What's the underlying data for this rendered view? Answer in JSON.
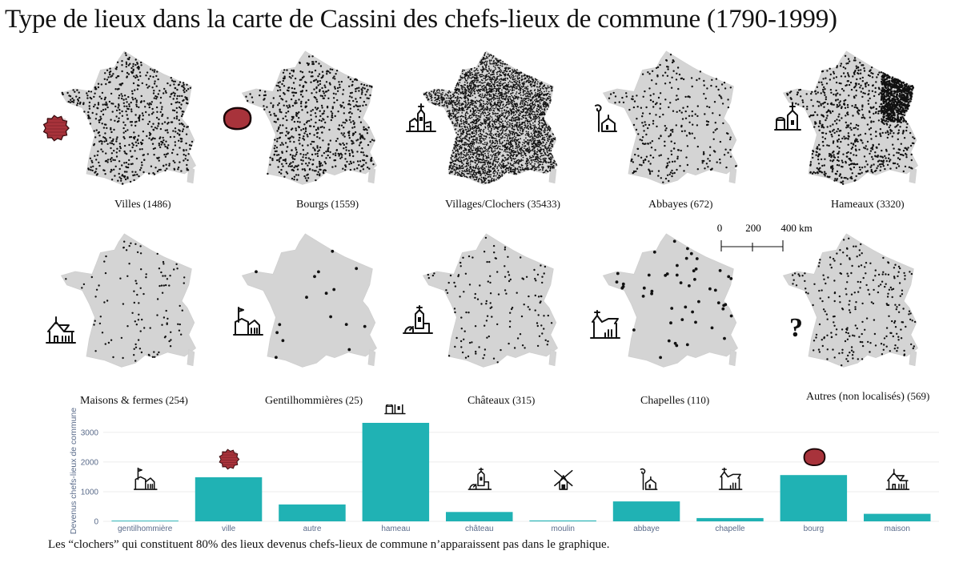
{
  "title": "Type de lieux dans la carte de Cassini des chefs-lieux de commune (1790-1999)",
  "maps": [
    {
      "label": "Villes",
      "count": "(1486)",
      "icon": "red-star-polygon-icon",
      "density": 1486
    },
    {
      "label": "Bourgs",
      "count": "(1559)",
      "icon": "red-blob-icon",
      "density": 1559
    },
    {
      "label": "Villages/Clochers",
      "count": "(35433)",
      "icon": "church-steeple-icon",
      "density": 35433
    },
    {
      "label": "Abbayes",
      "count": "(672)",
      "icon": "crosier-abbey-icon",
      "density": 672
    },
    {
      "label": "Hameaux",
      "count": "(3320)",
      "icon": "hamlet-icon",
      "density": 3320
    },
    {
      "label": "Maisons & fermes",
      "count": "(254)",
      "icon": "house-icon",
      "density": 254
    },
    {
      "label": "Gentilhommières",
      "count": "(25)",
      "icon": "manor-flag-icon",
      "density": 25
    },
    {
      "label": "Châteaux",
      "count": "(315)",
      "icon": "castle-icon",
      "density": 315
    },
    {
      "label": "Chapelles",
      "count": "(110)",
      "icon": "chapel-icon",
      "density": 110
    },
    {
      "label": "Autres (non localisés)",
      "count": "(569)",
      "icon": "question-mark-icon",
      "density": 569
    }
  ],
  "scale": {
    "t0": "0",
    "t1": "200",
    "t2": "400 km"
  },
  "footnote": "Les “clochers” qui constituent 80% des lieux devenus chefs-lieux de commune n’apparaissent pas dans le graphique.",
  "colors": {
    "bar": "#20b2b4",
    "map_fill": "#d4d4d4",
    "dot": "#111111",
    "red_symbol": "#a8333b"
  },
  "chart_data": {
    "type": "bar",
    "ylabel": "Devenus chefs-lieux de commune",
    "categories": [
      "gentilhommière",
      "ville",
      "autre",
      "hameau",
      "château",
      "moulin",
      "abbaye",
      "chapelle",
      "bourg",
      "maison"
    ],
    "values": [
      25,
      1486,
      569,
      3320,
      315,
      30,
      672,
      110,
      1559,
      254
    ],
    "icons": [
      "manor-flag-icon",
      "red-star-polygon-icon",
      "",
      "hamlet-icon",
      "castle-icon",
      "windmill-icon",
      "crosier-abbey-icon",
      "chapel-icon",
      "red-blob-icon",
      "house-icon"
    ],
    "yticks": [
      "0",
      "1000",
      "2000",
      "3000"
    ],
    "ylim": [
      0,
      3400
    ],
    "grid": true
  }
}
